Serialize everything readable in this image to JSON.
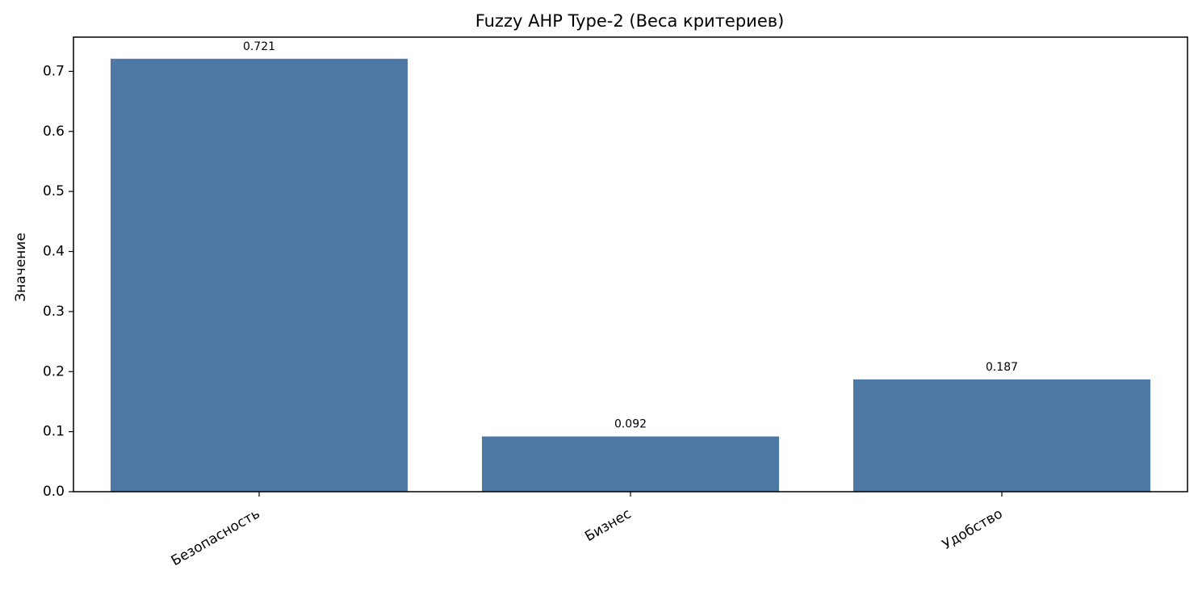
{
  "chart_data": {
    "type": "bar",
    "title": "Fuzzy AHP Type-2 (Веса критериев)",
    "xlabel": "",
    "ylabel": "Значение",
    "categories": [
      "Безопасность",
      "Бизнес",
      "Удобство"
    ],
    "values": [
      0.721,
      0.092,
      0.187
    ],
    "data_labels": [
      "0.721",
      "0.092",
      "0.187"
    ],
    "y_ticks": [
      0.0,
      0.1,
      0.2,
      0.3,
      0.4,
      0.5,
      0.6,
      0.7
    ],
    "y_tick_labels": [
      "0.0",
      "0.1",
      "0.2",
      "0.3",
      "0.4",
      "0.5",
      "0.6",
      "0.7"
    ],
    "ylim": [
      0,
      0.757
    ],
    "grid": false,
    "legend": "none",
    "x_tick_rotation_deg": 30,
    "bar_color": "#4e79a7"
  }
}
